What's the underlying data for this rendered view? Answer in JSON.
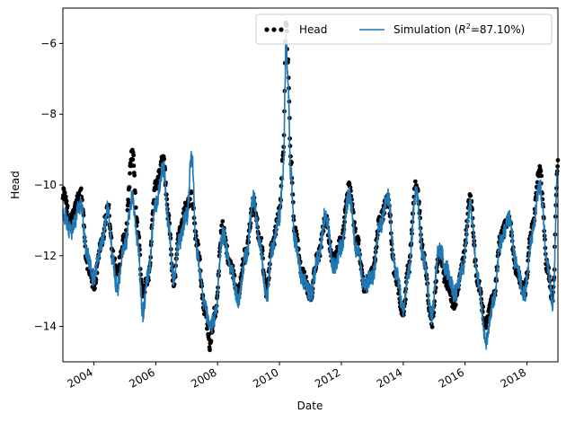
{
  "colors": {
    "observed": "#000000",
    "simulation": "#1f77b4",
    "background": "#ffffff",
    "legend_border": "#cccccc"
  },
  "chart_data": {
    "type": "line",
    "xlabel": "Date",
    "ylabel": "Head",
    "xlim": [
      "2003-01-01",
      "2019-01-01"
    ],
    "ylim": [
      -15.0,
      -5.0
    ],
    "x_ticks": [
      "2004",
      "2006",
      "2008",
      "2010",
      "2012",
      "2014",
      "2016",
      "2018"
    ],
    "y_ticks": [
      "-14",
      "-12",
      "-10",
      "-8",
      "-6"
    ],
    "grid": false,
    "legend_position": "top-right",
    "legend": [
      "Head",
      "Simulation ($R^2$=87.10%)"
    ],
    "series": [
      {
        "name": "Head",
        "style": "scatter",
        "points": [
          [
            "2003-01-01",
            -10.2
          ],
          [
            "2003-04-01",
            -11.0
          ],
          [
            "2003-08-01",
            -10.2
          ],
          [
            "2003-10-15",
            -12.2
          ],
          [
            "2004-01-01",
            -12.8
          ],
          [
            "2004-04-01",
            -11.6
          ],
          [
            "2004-06-15",
            -10.6
          ],
          [
            "2004-08-15",
            -12.0
          ],
          [
            "2004-10-01",
            -12.4
          ],
          [
            "2005-01-01",
            -11.5
          ],
          [
            "2005-04-01",
            -9.1
          ],
          [
            "2005-06-01",
            -11.2
          ],
          [
            "2005-08-01",
            -13.1
          ],
          [
            "2005-10-01",
            -12.6
          ],
          [
            "2006-01-01",
            -10.0
          ],
          [
            "2006-04-01",
            -9.3
          ],
          [
            "2006-06-01",
            -11.0
          ],
          [
            "2006-08-01",
            -12.8
          ],
          [
            "2006-10-01",
            -11.4
          ],
          [
            "2007-01-01",
            -10.6
          ],
          [
            "2007-03-01",
            -10.3
          ],
          [
            "2007-05-01",
            -11.6
          ],
          [
            "2007-08-01",
            -13.5
          ],
          [
            "2007-10-01",
            -14.5
          ],
          [
            "2007-12-01",
            -13.6
          ],
          [
            "2008-03-01",
            -11.2
          ],
          [
            "2008-06-01",
            -12.3
          ],
          [
            "2008-09-01",
            -13.0
          ],
          [
            "2008-12-01",
            -11.9
          ],
          [
            "2009-03-01",
            -10.5
          ],
          [
            "2009-05-15",
            -11.5
          ],
          [
            "2009-08-01",
            -13.0
          ],
          [
            "2009-10-01",
            -11.8
          ],
          [
            "2010-01-01",
            -10.8
          ],
          [
            "2010-02-15",
            -9.2
          ],
          [
            "2010-03-20",
            -5.4
          ],
          [
            "2010-04-10",
            -6.5
          ],
          [
            "2010-05-15",
            -9.4
          ],
          [
            "2010-07-01",
            -11.3
          ],
          [
            "2010-10-01",
            -12.5
          ],
          [
            "2011-01-01",
            -13.1
          ],
          [
            "2011-04-01",
            -12.0
          ],
          [
            "2011-07-01",
            -11.0
          ],
          [
            "2011-10-01",
            -12.2
          ],
          [
            "2012-01-01",
            -11.6
          ],
          [
            "2012-04-01",
            -10.0
          ],
          [
            "2012-07-01",
            -11.5
          ],
          [
            "2012-10-01",
            -12.9
          ],
          [
            "2013-01-01",
            -12.5
          ],
          [
            "2013-04-01",
            -11.0
          ],
          [
            "2013-07-01",
            -10.4
          ],
          [
            "2013-10-01",
            -12.6
          ],
          [
            "2014-01-01",
            -13.6
          ],
          [
            "2014-03-01",
            -12.4
          ],
          [
            "2014-06-01",
            -9.9
          ],
          [
            "2014-09-01",
            -12.0
          ],
          [
            "2014-12-01",
            -13.9
          ],
          [
            "2015-03-01",
            -12.0
          ],
          [
            "2015-06-01",
            -12.8
          ],
          [
            "2015-09-01",
            -13.4
          ],
          [
            "2015-12-01",
            -12.2
          ],
          [
            "2016-03-01",
            -10.4
          ],
          [
            "2016-06-01",
            -12.8
          ],
          [
            "2016-09-01",
            -13.9
          ],
          [
            "2016-12-01",
            -13.2
          ],
          [
            "2017-03-01",
            -11.4
          ],
          [
            "2017-06-01",
            -11.0
          ],
          [
            "2017-09-01",
            -12.5
          ],
          [
            "2017-12-01",
            -13.0
          ],
          [
            "2018-03-01",
            -11.2
          ],
          [
            "2018-06-01",
            -9.6
          ],
          [
            "2018-09-01",
            -12.4
          ],
          [
            "2018-11-01",
            -13.2
          ],
          [
            "2019-01-01",
            -9.3
          ]
        ]
      },
      {
        "name": "Simulation ($R^2$=87.10%)",
        "style": "line",
        "points": [
          [
            "2003-01-01",
            -10.8
          ],
          [
            "2003-04-01",
            -11.3
          ],
          [
            "2003-08-01",
            -10.6
          ],
          [
            "2003-10-15",
            -12.0
          ],
          [
            "2004-01-01",
            -12.6
          ],
          [
            "2004-04-01",
            -11.7
          ],
          [
            "2004-06-15",
            -10.7
          ],
          [
            "2004-08-15",
            -12.2
          ],
          [
            "2004-10-01",
            -12.9
          ],
          [
            "2005-01-01",
            -11.7
          ],
          [
            "2005-04-01",
            -10.4
          ],
          [
            "2005-06-01",
            -11.6
          ],
          [
            "2005-08-01",
            -13.6
          ],
          [
            "2005-10-01",
            -12.5
          ],
          [
            "2006-01-01",
            -10.5
          ],
          [
            "2006-04-01",
            -9.5
          ],
          [
            "2006-06-01",
            -11.1
          ],
          [
            "2006-08-01",
            -12.7
          ],
          [
            "2006-10-01",
            -11.6
          ],
          [
            "2007-01-01",
            -10.9
          ],
          [
            "2007-03-01",
            -9.2
          ],
          [
            "2007-05-01",
            -11.9
          ],
          [
            "2007-08-01",
            -13.4
          ],
          [
            "2007-10-01",
            -14.1
          ],
          [
            "2007-12-01",
            -13.7
          ],
          [
            "2008-03-01",
            -11.4
          ],
          [
            "2008-06-01",
            -12.3
          ],
          [
            "2008-09-01",
            -13.2
          ],
          [
            "2008-12-01",
            -12.0
          ],
          [
            "2009-03-01",
            -10.4
          ],
          [
            "2009-05-15",
            -11.7
          ],
          [
            "2009-08-01",
            -13.2
          ],
          [
            "2009-10-01",
            -11.9
          ],
          [
            "2010-01-01",
            -10.9
          ],
          [
            "2010-02-15",
            -9.6
          ],
          [
            "2010-03-20",
            -6.0
          ],
          [
            "2010-04-10",
            -6.9
          ],
          [
            "2010-05-15",
            -9.7
          ],
          [
            "2010-07-01",
            -11.6
          ],
          [
            "2010-10-01",
            -12.7
          ],
          [
            "2011-01-01",
            -13.1
          ],
          [
            "2011-04-01",
            -12.1
          ],
          [
            "2011-07-01",
            -10.8
          ],
          [
            "2011-10-01",
            -12.3
          ],
          [
            "2012-01-01",
            -11.8
          ],
          [
            "2012-04-01",
            -10.3
          ],
          [
            "2012-07-01",
            -11.8
          ],
          [
            "2012-10-01",
            -12.8
          ],
          [
            "2013-01-01",
            -12.6
          ],
          [
            "2013-04-01",
            -11.2
          ],
          [
            "2013-07-01",
            -10.3
          ],
          [
            "2013-10-01",
            -12.4
          ],
          [
            "2014-01-01",
            -13.5
          ],
          [
            "2014-03-01",
            -12.5
          ],
          [
            "2014-06-01",
            -10.2
          ],
          [
            "2014-09-01",
            -12.1
          ],
          [
            "2014-12-01",
            -13.7
          ],
          [
            "2015-03-01",
            -11.8
          ],
          [
            "2015-06-01",
            -12.4
          ],
          [
            "2015-09-01",
            -13.1
          ],
          [
            "2015-12-01",
            -12.4
          ],
          [
            "2016-03-01",
            -10.6
          ],
          [
            "2016-06-01",
            -12.7
          ],
          [
            "2016-09-01",
            -14.4
          ],
          [
            "2016-12-01",
            -13.3
          ],
          [
            "2017-03-01",
            -11.6
          ],
          [
            "2017-06-01",
            -10.9
          ],
          [
            "2017-09-01",
            -12.3
          ],
          [
            "2017-12-01",
            -13.1
          ],
          [
            "2018-03-01",
            -11.4
          ],
          [
            "2018-06-01",
            -10.0
          ],
          [
            "2018-09-01",
            -12.2
          ],
          [
            "2018-11-01",
            -13.3
          ],
          [
            "2019-01-01",
            -9.5
          ]
        ]
      }
    ]
  }
}
